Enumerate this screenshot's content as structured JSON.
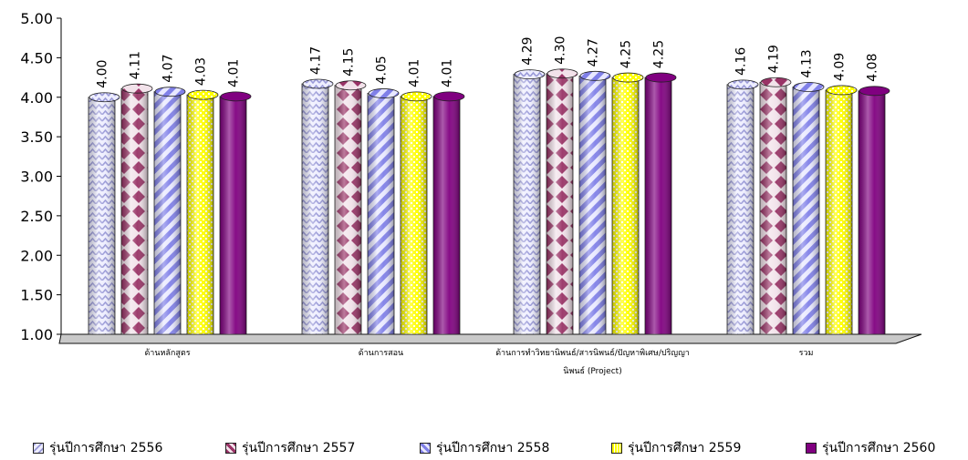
{
  "chart_data": {
    "type": "bar",
    "title": "",
    "xlabel": "",
    "ylabel": "",
    "ylim": [
      1.0,
      5.0
    ],
    "yticks": [
      "1.00",
      "1.50",
      "2.00",
      "2.50",
      "3.00",
      "3.50",
      "4.00",
      "4.50",
      "5.00"
    ],
    "grid": false,
    "legend_position": "bottom",
    "categories": [
      [
        "ด้านหลักสูตร"
      ],
      [
        "ด้านการสอน"
      ],
      [
        "ด้านการทำวิทยานิพนธ์/สารนิพนธ์/ปัญหาพิเศษ/ปริญญา",
        "นิพนธ์ (Project)"
      ],
      [
        "รวม"
      ]
    ],
    "series": [
      {
        "name": "รุ่นปีการศึกษา 2556",
        "values": [
          4.0,
          4.17,
          4.29,
          4.16
        ],
        "labels": [
          "4.00",
          "4.17",
          "4.29",
          "4.16"
        ],
        "color": "#C8C8F0",
        "pattern": "zigzag-lavender"
      },
      {
        "name": "รุ่นปีการศึกษา 2557",
        "values": [
          4.11,
          4.15,
          4.3,
          4.19
        ],
        "labels": [
          "4.11",
          "4.15",
          "4.30",
          "4.19"
        ],
        "color": "#993366",
        "pattern": "diamond-plum"
      },
      {
        "name": "รุ่นปีการศึกษา 2558",
        "values": [
          4.07,
          4.05,
          4.27,
          4.13
        ],
        "labels": [
          "4.07",
          "4.05",
          "4.27",
          "4.13"
        ],
        "color": "#9999FF",
        "pattern": "diagonal-stripe-blue"
      },
      {
        "name": "รุ่นปีการศึกษา 2559",
        "values": [
          4.03,
          4.01,
          4.25,
          4.09
        ],
        "labels": [
          "4.03",
          "4.01",
          "4.25",
          "4.09"
        ],
        "color": "#FFFF00",
        "pattern": "dotted-yellow"
      },
      {
        "name": "รุ่นปีการศึกษา 2560",
        "values": [
          4.01,
          4.01,
          4.25,
          4.08
        ],
        "labels": [
          "4.01",
          "4.01",
          "4.25",
          "4.08"
        ],
        "color": "#800080",
        "pattern": "solid-purple"
      }
    ]
  }
}
